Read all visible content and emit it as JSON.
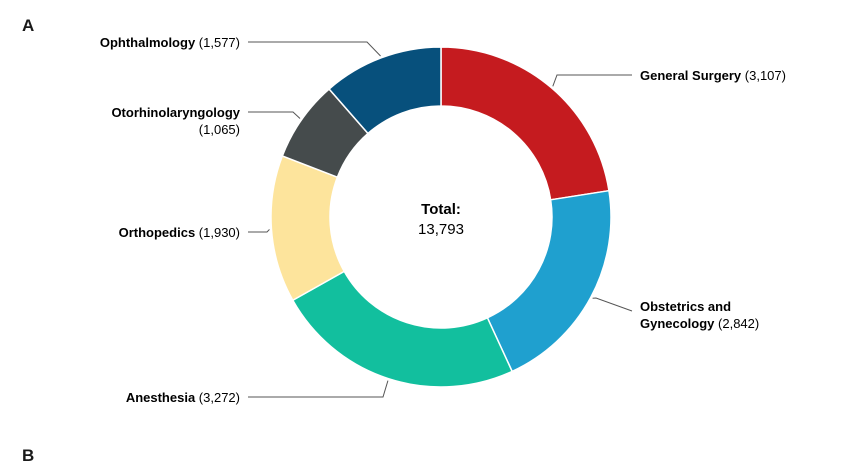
{
  "panel_a_label": "A",
  "panel_b_label": "B",
  "chart_data": {
    "type": "pie",
    "variant": "donut",
    "center_title": "Total:",
    "center_value": "13,793",
    "total": 13793,
    "slices": [
      {
        "name": "General Surgery",
        "value": 3107,
        "value_label": "(3,107)",
        "color": "#c51b1f"
      },
      {
        "name": "Obstetrics and Gynecology",
        "name_lines": [
          "Obstetrics and",
          "Gynecology"
        ],
        "value": 2842,
        "value_label": "(2,842)",
        "color": "#1fa0cf"
      },
      {
        "name": "Anesthesia",
        "value": 3272,
        "value_label": "(3,272)",
        "color": "#12bf9e"
      },
      {
        "name": "Orthopedics",
        "value": 1930,
        "value_label": "(1,930)",
        "color": "#fde49c"
      },
      {
        "name": "Otorhinolaryngology",
        "name_lines": [
          "Otorhinolaryngology",
          ""
        ],
        "value": 1065,
        "value_label": "(1,065)",
        "color": "#454b4c"
      },
      {
        "name": "Ophthalmology",
        "value": 1577,
        "value_label": "(1,577)",
        "color": "#07507c"
      }
    ]
  }
}
